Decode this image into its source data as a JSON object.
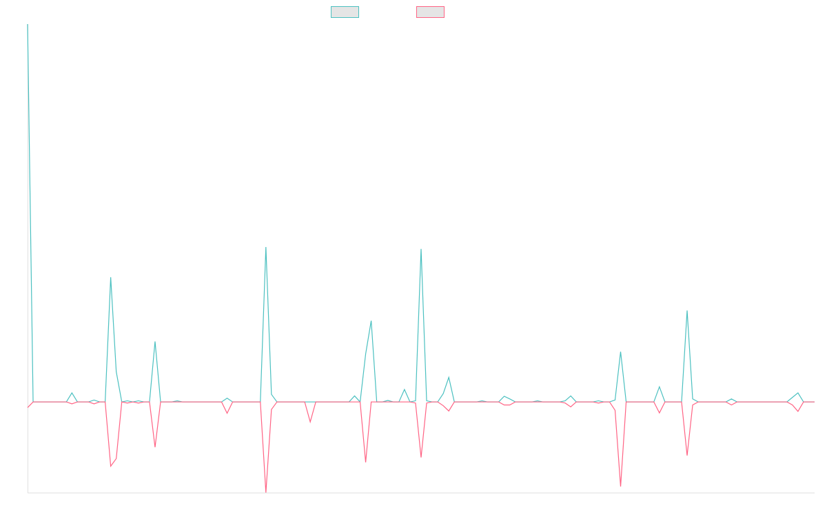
{
  "chart_data": {
    "type": "line",
    "categories": [
      null,
      null,
      null,
      null,
      null,
      null,
      null,
      null,
      null,
      null,
      null,
      null,
      null,
      null,
      null,
      null,
      null,
      null,
      null,
      null,
      null,
      null,
      null,
      null,
      null,
      null,
      null,
      null,
      null,
      null,
      null,
      null,
      null,
      null,
      null,
      null,
      null,
      null,
      null,
      null,
      null,
      null,
      null,
      null,
      null,
      null,
      null,
      null,
      null,
      null,
      null,
      null,
      null,
      null,
      null,
      null,
      null,
      null,
      null,
      null,
      null,
      null,
      null,
      null,
      null,
      null,
      null,
      null,
      null,
      null,
      null,
      null,
      null,
      null,
      null,
      null,
      null,
      null,
      null,
      null,
      null,
      null,
      null,
      null,
      null,
      null,
      null,
      null,
      null,
      null,
      null,
      null,
      null,
      null,
      null,
      null,
      null,
      null,
      null,
      null,
      null,
      null,
      null,
      null,
      null,
      null,
      null,
      null,
      null,
      null,
      null,
      null,
      null,
      null,
      null,
      null,
      null,
      null,
      null,
      null,
      null,
      null,
      null,
      null,
      null,
      null,
      null,
      null,
      null,
      null,
      null,
      null,
      null,
      null,
      null,
      null,
      null,
      null,
      null,
      null,
      null,
      null,
      null
    ],
    "series": [
      {
        "color": "#4bc0c0",
        "values": [
          100,
          0,
          0,
          0,
          0,
          0,
          0,
          0,
          2.4,
          0,
          0,
          0,
          0.5,
          0,
          0,
          33,
          8,
          0,
          0.3,
          0,
          0.3,
          0,
          0,
          16,
          0,
          0,
          0,
          0.3,
          0,
          0,
          0,
          0,
          0,
          0,
          0,
          0,
          1,
          0,
          0,
          0,
          0,
          0,
          0,
          41,
          2,
          0,
          0,
          0,
          0,
          0,
          0,
          0,
          0,
          0,
          0,
          0,
          0,
          0,
          0,
          1.6,
          0,
          12.7,
          21.5,
          0,
          0,
          0.4,
          0,
          0,
          3.3,
          0,
          0.3,
          40.5,
          0.3,
          0,
          0,
          2.2,
          6.5,
          0,
          0,
          0,
          0,
          0,
          0.3,
          0,
          0,
          0,
          1.5,
          0.8,
          0,
          0,
          0,
          0,
          0.3,
          0,
          0,
          0,
          0,
          0.3,
          1.6,
          0,
          0,
          0,
          0,
          0.3,
          0,
          0,
          0.5,
          13.3,
          0,
          0,
          0,
          0,
          0,
          0,
          4,
          0,
          0,
          0,
          0,
          24.2,
          0.8,
          0,
          0,
          0,
          0,
          0,
          0,
          0.8,
          0,
          0,
          0,
          0,
          0,
          0,
          0,
          0,
          0,
          0,
          1.2,
          2.4,
          0,
          0,
          0
        ]
      },
      {
        "color": "#ff6384",
        "values": [
          -1.5,
          0,
          0,
          0,
          0,
          0,
          0,
          0,
          -0.5,
          0,
          0,
          0,
          -0.5,
          0,
          0,
          -17,
          -15,
          0,
          -0.3,
          0,
          -0.3,
          0,
          0,
          -12,
          0,
          0,
          0,
          0,
          0,
          0,
          0,
          0,
          0,
          0,
          0,
          0,
          -3,
          0,
          0,
          0,
          0,
          0,
          0,
          -24,
          -2,
          0,
          0,
          0,
          0,
          0,
          0,
          -5.3,
          0,
          0,
          0,
          0,
          0,
          0,
          0,
          0,
          0,
          -16,
          0,
          0,
          0,
          0,
          0,
          0,
          0,
          0,
          -0.3,
          -14.7,
          -0.3,
          0,
          0,
          -1,
          -2.4,
          0,
          0,
          0,
          0,
          0,
          0,
          0,
          0,
          0,
          -0.8,
          -0.8,
          0,
          0,
          0,
          0,
          0,
          0,
          0,
          0,
          0,
          -0.3,
          -1.3,
          0,
          0,
          0,
          0,
          -0.3,
          0,
          0,
          -2.2,
          -22.4,
          0,
          0,
          0,
          0,
          0,
          0,
          -2.9,
          0,
          0,
          0,
          0,
          -14.2,
          -0.8,
          0,
          0,
          0,
          0,
          0,
          0,
          -0.8,
          0,
          0,
          0,
          0,
          0,
          0,
          0,
          0,
          0,
          0,
          -0.8,
          -2.5,
          0,
          0,
          0
        ]
      }
    ],
    "ylim": [
      -24,
      100
    ]
  }
}
